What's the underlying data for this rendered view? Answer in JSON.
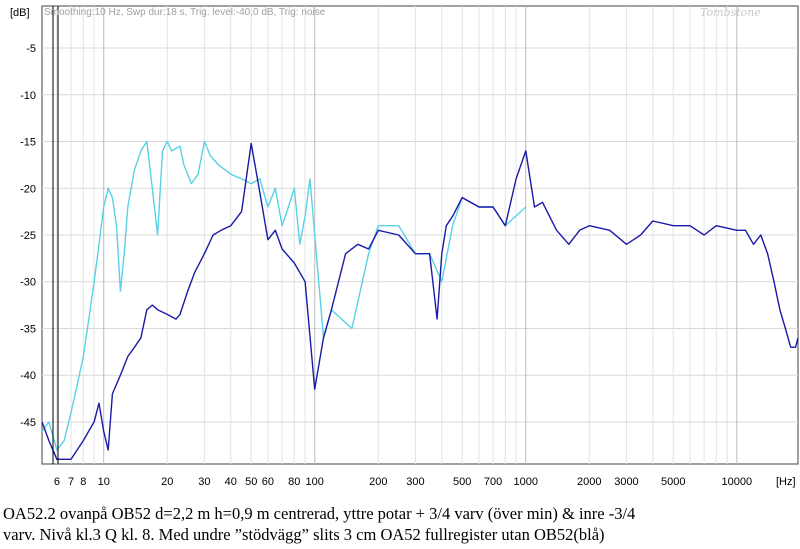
{
  "chart_data": {
    "type": "line",
    "x_scale": "log",
    "header_text": "Smoothing:10 Hz, Swp dur:18 s, Trig. level:-40,0 dB, Trig: noise",
    "watermark": "Tombstone",
    "ylabel": "[dB]",
    "xlabel": "[Hz]",
    "ylim": [
      -49.5,
      -0.5
    ],
    "xlim": [
      5.1,
      19500
    ],
    "y_ticks": [
      -5,
      -10,
      -15,
      -20,
      -25,
      -30,
      -35,
      -40,
      -45
    ],
    "x_ticks": [
      {
        "v": 6,
        "label": "6"
      },
      {
        "v": 7,
        "label": "7"
      },
      {
        "v": 8,
        "label": "8"
      },
      {
        "v": 10,
        "label": "10"
      },
      {
        "v": 20,
        "label": "20"
      },
      {
        "v": 30,
        "label": "30"
      },
      {
        "v": 40,
        "label": "40"
      },
      {
        "v": 50,
        "label": "50"
      },
      {
        "v": 60,
        "label": "60"
      },
      {
        "v": 80,
        "label": "80"
      },
      {
        "v": 100,
        "label": "100"
      },
      {
        "v": 200,
        "label": "200"
      },
      {
        "v": 300,
        "label": "300"
      },
      {
        "v": 500,
        "label": "500"
      },
      {
        "v": 700,
        "label": "700"
      },
      {
        "v": 1000,
        "label": "1000"
      },
      {
        "v": 2000,
        "label": "2000"
      },
      {
        "v": 3000,
        "label": "3000"
      },
      {
        "v": 5000,
        "label": "5000"
      },
      {
        "v": 10000,
        "label": "10000"
      }
    ],
    "grid": "on",
    "series": [
      {
        "color": "#5ad2e6",
        "points": [
          [
            5.1,
            -46
          ],
          [
            5.5,
            -45
          ],
          [
            6,
            -48
          ],
          [
            6.5,
            -47
          ],
          [
            7,
            -44
          ],
          [
            7.5,
            -41
          ],
          [
            8,
            -38
          ],
          [
            8.5,
            -34
          ],
          [
            9,
            -30
          ],
          [
            9.5,
            -26
          ],
          [
            10,
            -22
          ],
          [
            10.5,
            -20
          ],
          [
            11,
            -21
          ],
          [
            11.5,
            -24
          ],
          [
            12,
            -31
          ],
          [
            12.5,
            -27
          ],
          [
            13,
            -22
          ],
          [
            14,
            -18
          ],
          [
            15,
            -16
          ],
          [
            16,
            -15
          ],
          [
            17,
            -20
          ],
          [
            18,
            -25
          ],
          [
            19,
            -16
          ],
          [
            20,
            -15
          ],
          [
            21,
            -16
          ],
          [
            23,
            -15.5
          ],
          [
            24,
            -17.5
          ],
          [
            26,
            -19.5
          ],
          [
            28,
            -18.5
          ],
          [
            30,
            -15
          ],
          [
            32,
            -16.5
          ],
          [
            35,
            -17.5
          ],
          [
            40,
            -18.5
          ],
          [
            45,
            -19
          ],
          [
            50,
            -19.5
          ],
          [
            55,
            -19
          ],
          [
            60,
            -22
          ],
          [
            65,
            -20
          ],
          [
            70,
            -24
          ],
          [
            75,
            -22
          ],
          [
            80,
            -20
          ],
          [
            85,
            -26
          ],
          [
            90,
            -23
          ],
          [
            95,
            -19
          ],
          [
            100,
            -25
          ],
          [
            110,
            -36
          ],
          [
            120,
            -33
          ],
          [
            150,
            -35
          ],
          [
            180,
            -27
          ],
          [
            200,
            -24
          ],
          [
            250,
            -24
          ],
          [
            300,
            -27
          ],
          [
            350,
            -27
          ],
          [
            400,
            -30
          ],
          [
            450,
            -24
          ],
          [
            500,
            -21
          ],
          [
            600,
            -22
          ],
          [
            700,
            -22
          ],
          [
            800,
            -24
          ],
          [
            1000,
            -22
          ]
        ]
      },
      {
        "color": "#1a1aa8",
        "points": [
          [
            5.1,
            -45
          ],
          [
            5.5,
            -47
          ],
          [
            6,
            -49
          ],
          [
            7,
            -49
          ],
          [
            8,
            -47
          ],
          [
            9,
            -45
          ],
          [
            9.5,
            -43
          ],
          [
            10,
            -46
          ],
          [
            10.5,
            -48
          ],
          [
            11,
            -42
          ],
          [
            12,
            -40
          ],
          [
            13,
            -38
          ],
          [
            14,
            -37
          ],
          [
            15,
            -36
          ],
          [
            16,
            -33
          ],
          [
            17,
            -32.5
          ],
          [
            18,
            -33
          ],
          [
            20,
            -33.5
          ],
          [
            22,
            -34
          ],
          [
            23,
            -33.5
          ],
          [
            25,
            -31
          ],
          [
            27,
            -29
          ],
          [
            30,
            -27
          ],
          [
            33,
            -25
          ],
          [
            36,
            -24.5
          ],
          [
            40,
            -24
          ],
          [
            45,
            -22.5
          ],
          [
            50,
            -15.2
          ],
          [
            55,
            -20.5
          ],
          [
            60,
            -25.5
          ],
          [
            65,
            -24.5
          ],
          [
            70,
            -26.5
          ],
          [
            80,
            -28
          ],
          [
            90,
            -30
          ],
          [
            100,
            -41.5
          ],
          [
            110,
            -36
          ],
          [
            120,
            -33
          ],
          [
            140,
            -27
          ],
          [
            160,
            -26
          ],
          [
            180,
            -26.5
          ],
          [
            200,
            -24.5
          ],
          [
            250,
            -25
          ],
          [
            300,
            -27
          ],
          [
            350,
            -27
          ],
          [
            380,
            -34
          ],
          [
            400,
            -27
          ],
          [
            420,
            -24
          ],
          [
            450,
            -23
          ],
          [
            500,
            -21
          ],
          [
            600,
            -22
          ],
          [
            700,
            -22
          ],
          [
            800,
            -24
          ],
          [
            900,
            -19
          ],
          [
            1000,
            -16
          ],
          [
            1100,
            -22
          ],
          [
            1200,
            -21.5
          ],
          [
            1400,
            -24.5
          ],
          [
            1600,
            -26
          ],
          [
            1800,
            -24.5
          ],
          [
            2000,
            -24
          ],
          [
            2500,
            -24.5
          ],
          [
            3000,
            -26
          ],
          [
            3500,
            -25
          ],
          [
            4000,
            -23.5
          ],
          [
            5000,
            -24
          ],
          [
            6000,
            -24
          ],
          [
            7000,
            -25
          ],
          [
            8000,
            -24
          ],
          [
            10000,
            -24.5
          ],
          [
            11000,
            -24.5
          ],
          [
            12000,
            -26
          ],
          [
            13000,
            -25
          ],
          [
            14000,
            -27
          ],
          [
            15000,
            -30
          ],
          [
            16000,
            -33
          ],
          [
            17000,
            -35
          ],
          [
            18000,
            -37
          ],
          [
            19000,
            -37
          ],
          [
            19500,
            -36
          ]
        ]
      }
    ]
  },
  "caption": {
    "line1": "OA52.2 ovanpå OB52   d=2,2 m h=0,9 m centrerad, yttre potar + 3/4 varv (över min) & inre -3/4",
    "line2": "varv. Nivå kl.3  Q kl. 8. Med undre ”stödvägg” slits 3 cm OA52 fullregister utan OB52(blå)"
  }
}
